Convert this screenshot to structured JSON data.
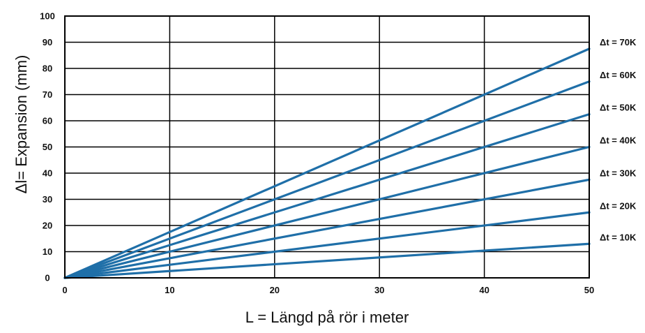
{
  "chart_data": {
    "type": "line",
    "xlabel": "L = Längd på rör i meter",
    "ylabel": "Δl= Expansion (mm)",
    "xlim": [
      0,
      50
    ],
    "ylim": [
      0,
      100
    ],
    "x_ticks": [
      0,
      10,
      20,
      30,
      40,
      50
    ],
    "y_ticks": [
      0,
      10,
      20,
      30,
      40,
      50,
      60,
      70,
      80,
      90,
      100
    ],
    "x_gridlines": [
      0,
      10,
      20,
      30,
      40,
      50
    ],
    "y_gridlines": [
      0,
      10,
      20,
      30,
      40,
      50,
      60,
      70,
      80,
      90,
      100
    ],
    "grid": true,
    "legend_position": "right",
    "line_color": "#1f6fa8",
    "series": [
      {
        "name": "Δt = 70K",
        "x": [
          0,
          50
        ],
        "y": [
          0,
          87.5
        ]
      },
      {
        "name": "Δt = 60K",
        "x": [
          0,
          50
        ],
        "y": [
          0,
          75
        ]
      },
      {
        "name": "Δt = 50K",
        "x": [
          0,
          50
        ],
        "y": [
          0,
          62.5
        ]
      },
      {
        "name": "Δt = 40K",
        "x": [
          0,
          50
        ],
        "y": [
          0,
          50
        ]
      },
      {
        "name": "Δt = 30K",
        "x": [
          0,
          50
        ],
        "y": [
          0,
          37.5
        ]
      },
      {
        "name": "Δt = 20K",
        "x": [
          0,
          50
        ],
        "y": [
          0,
          25
        ]
      },
      {
        "name": "Δt = 10K",
        "x": [
          0,
          50
        ],
        "y": [
          0,
          13
        ]
      }
    ]
  }
}
